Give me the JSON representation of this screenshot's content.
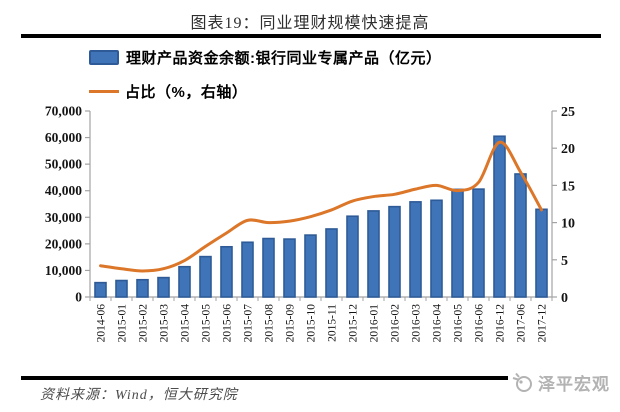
{
  "header": {
    "title": "图表19：同业理财规模快速提高"
  },
  "legend": {
    "items": [
      {
        "id": "balance",
        "label": "理财产品资金余额:银行同业专属产品（亿元）",
        "marker": "bar-swatch"
      },
      {
        "id": "ratio",
        "label": "占比（%，右轴）",
        "marker": "line-swatch"
      }
    ]
  },
  "chart_data": {
    "type": "bar",
    "combo": true,
    "categories": [
      "2014-06",
      "2015-01",
      "2015-02",
      "2015-03",
      "2015-04",
      "2015-05",
      "2015-06",
      "2015-07",
      "2015-08",
      "2015-09",
      "2015-10",
      "2015-11",
      "2015-12",
      "2016-01",
      "2016-02",
      "2016-03",
      "2016-04",
      "2016-05",
      "2016-06",
      "2016-12",
      "2017-06",
      "2017-12"
    ],
    "series": [
      {
        "name": "理财产品资金余额:银行同业专属产品（亿元）",
        "type": "bar",
        "axis": "left",
        "values": [
          5400,
          6200,
          6500,
          7300,
          11400,
          15200,
          18900,
          20600,
          22000,
          21800,
          23300,
          25600,
          30400,
          32400,
          34000,
          35800,
          36400,
          40500,
          40600,
          60500,
          46300,
          33000
        ]
      },
      {
        "name": "占比（%，右轴）",
        "type": "line",
        "axis": "right",
        "values": [
          4.2,
          3.8,
          3.5,
          3.8,
          4.9,
          6.8,
          8.6,
          10.3,
          10.0,
          10.2,
          10.8,
          11.7,
          12.9,
          13.5,
          13.8,
          14.5,
          15.0,
          14.3,
          15.4,
          20.8,
          16.8,
          11.7
        ]
      }
    ],
    "left_axis": {
      "min": 0,
      "max": 70000,
      "step": 10000,
      "tick_labels": [
        "0",
        "10,000",
        "20,000",
        "30,000",
        "40,000",
        "50,000",
        "60,000",
        "70,000"
      ]
    },
    "right_axis": {
      "min": 0,
      "max": 25,
      "step": 5,
      "tick_labels": [
        "0",
        "5",
        "10",
        "15",
        "20",
        "25"
      ]
    },
    "grid": false,
    "legend_position": "top",
    "x_label_rotation": -90
  },
  "footer": {
    "source": "资料来源：Wind，恒大研究院",
    "watermark": "泽平宏观"
  },
  "colors": {
    "bar_fill": "#4074b8",
    "bar_border": "#2e5b97",
    "line": "#dc7628",
    "axis": "#a3a3a3",
    "text": "#1a1a1a",
    "rule": "#000000",
    "source_text": "#4c4c4c",
    "watermark": "#b3b3b3"
  }
}
